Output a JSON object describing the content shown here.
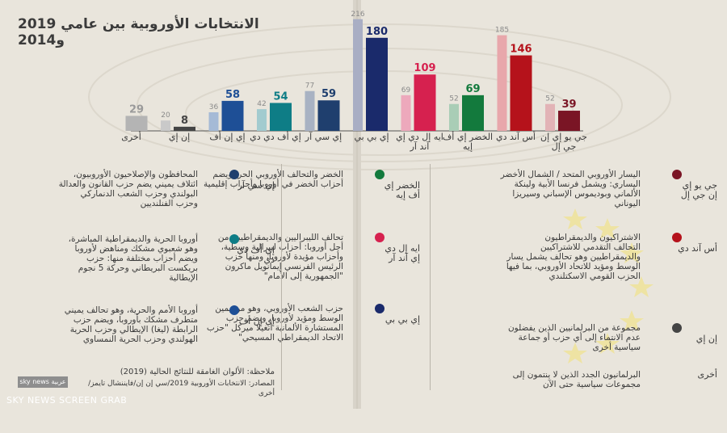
{
  "title": "الانتخابات الأوروبية بين عامي 2019 و2014",
  "chart_data": {
    "type": "bar",
    "categories": [
      "جي يو إي إن جي إل",
      "أس آند دي",
      "الخضر إي أف إيه",
      "ايه إل دي إي آند آر",
      "إي بي بي",
      "إي سي آر",
      "إي أف دي دي",
      "إي إن أف",
      "إن إي",
      "أخرى"
    ],
    "series": [
      {
        "values": [
          52,
          185,
          52,
          69,
          216,
          77,
          42,
          36,
          20,
          29
        ]
      },
      {
        "values": [
          39,
          146,
          69,
          109,
          180,
          59,
          54,
          58,
          8,
          null
        ]
      }
    ],
    "colors_2019": [
      "#7a1525",
      "#b5121b",
      "#137a3d",
      "#d6214f",
      "#1a2a6b",
      "#1f3f6e",
      "#0e7d86",
      "#1e4f96",
      "#444444",
      "#9a9a9a"
    ],
    "colors_2014": [
      "#e2b3b6",
      "#e8a7ab",
      "#a9cdb6",
      "#eda9bc",
      "#a9aec4",
      "#a8b2c3",
      "#a2cbcf",
      "#a5bad6",
      "#c9c9c9",
      "#b4b4b4"
    ]
  },
  "legend": [
    {
      "name": "جي يو إي إن جي إل",
      "color": "#7a1525",
      "desc": "اليسار الأوروبي المتحد / الشمال الأخضر اليساري: ويشمل فرنسا الأبية ولينكة الألماني وبوديموس الإسباني وسيريزا اليوناني"
    },
    {
      "name": "أس آند دي",
      "color": "#b5121b",
      "desc": "الاشتراكيون والديمقراطيون\nالتحالف التقدمي للاشتراكيين والديمقراطيين وهو تحالف يشمل يسار الوسط ومؤيد للاتحاد الأوروبي، بما فيها الحزب القومي الاسكتلندي"
    },
    {
      "name": "إن إي",
      "color": "#444444",
      "desc": "مجموعة من البرلمانيين الذين يفضلون عدم الانتماء إلى أي حزب أو جماعة سياسية أخرى"
    },
    {
      "name": "أخرى",
      "color": "",
      "desc": "البرلمانيون الجدد الذين لا ينتمون إلى مجموعات سياسية حتى الآن"
    },
    {
      "name": "الخضر إي أف إيه",
      "color": "#137a3d",
      "desc": "الخضر والتحالف الأوروبي الحر: ويضم أحزاب الخضر في أوروبا وأحزاب إقليمية"
    },
    {
      "name": "ايه إل دي إي آند آر",
      "color": "#d6214f",
      "desc": "تحالف الليبراليين والديمقراطيين من أجل أوروبا: أحزاب ليبرالية وسطية، وأحزاب مؤيدة لأوروبا، ومنها حزب الرئيس الفرنسي إيمانويل ماكرون \"الجمهورية إلى الأمام\""
    },
    {
      "name": "إي بي بي",
      "color": "#1a2a6b",
      "desc": "حزب الشعب الأوروبي، وهو من يمين الوسط ومؤيد لأوروبا، ويضم حزب المستشارة الألمانية أنغيلا ميركل \"حزب الاتحاد الديمقراطي المسيحي\""
    },
    {
      "name": "إي سي آر",
      "color": "#1f3f6e",
      "desc": "المحافظون والإصلاحيون الأوروبيون، ائتلاف يميني يضم حزب القانون والعدالة البولندي وحزب الشعب الدنماركي وحزب الفنلنديين"
    },
    {
      "name": "إي أف دي دي",
      "color": "#0e7d86",
      "desc": "أوروبا الحرية والديمقراطية المباشرة، وهو شعبوي مشكك ومناهض لأوروبا ويضم أحزاب مختلفة منها: حزب بريكست البريطاني وحركة 5 نجوم الإيطالية"
    },
    {
      "name": "إي إن أف",
      "color": "#1e4f96",
      "desc": "أوروبا الأمم والحرية، وهو تحالف يميني متطرف مشكك بأوروبا، ويضم حزب الرابطة (ليغا) الإيطالي وحزب الحرية الهولندي وحزب الحرية النمساوي"
    }
  ],
  "note": "ملاحظة: الألوان الغامقة للنتائج الحالية (2019)",
  "source": "المصادر: الانتخابات الأوروبية 2019/سي إن إن/فايننشال تايمز/أخرى",
  "logo": "sky news عربية",
  "watermark": "SKY NEWS SCREEN GRAB"
}
